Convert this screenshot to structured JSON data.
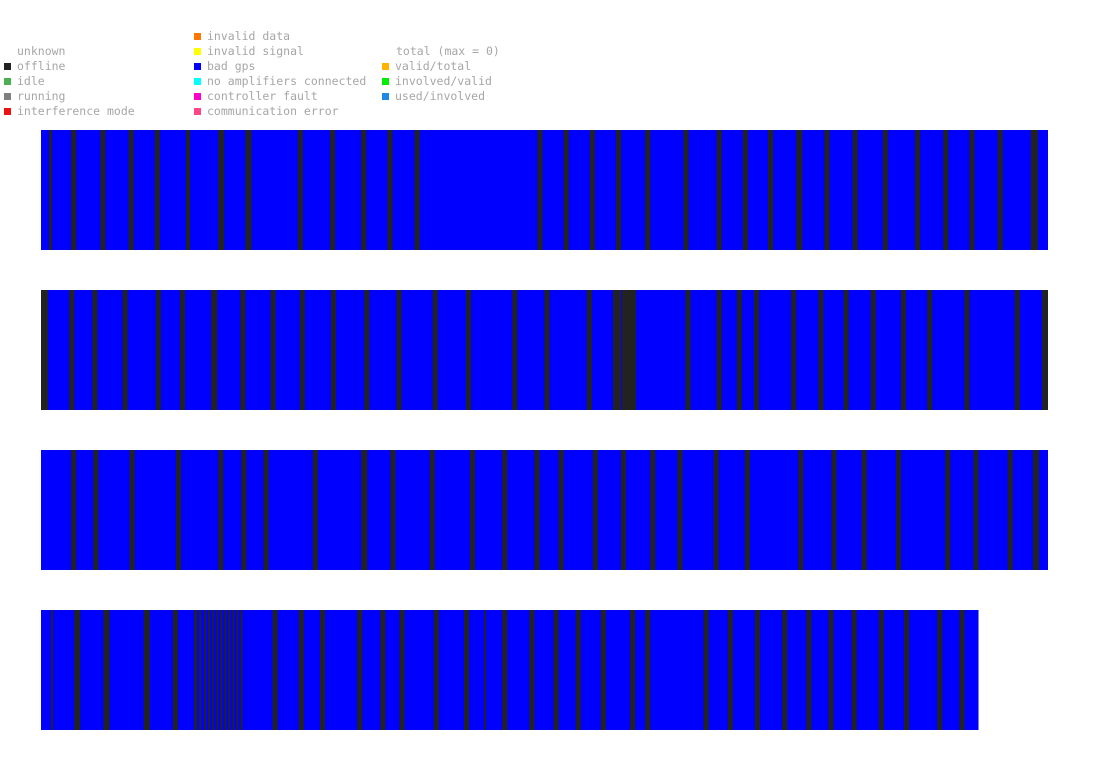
{
  "legend": {
    "status": [
      {
        "label": "unknown",
        "color": ""
      },
      {
        "label": "offline",
        "color": "#222222"
      },
      {
        "label": "idle",
        "color": "#4caf50"
      },
      {
        "label": "running",
        "color": "#808080"
      },
      {
        "label": "interference mode",
        "color": "#ee1111"
      }
    ],
    "faults": [
      {
        "label": "invalid data",
        "color": "#ff7700"
      },
      {
        "label": "invalid signal",
        "color": "#ffff00"
      },
      {
        "label": "bad gps",
        "color": "#0000ff"
      },
      {
        "label": "no amplifiers connected",
        "color": "#00ffff"
      },
      {
        "label": "controller fault",
        "color": "#ff00cc"
      },
      {
        "label": "communication error",
        "color": "#ff4488"
      }
    ],
    "totals_header": "total (max = 0)",
    "totals": [
      {
        "label": "valid/total",
        "color": "#ffb300"
      },
      {
        "label": "involved/valid",
        "color": "#00ee00"
      },
      {
        "label": "used/involved",
        "color": "#1e88e5"
      }
    ]
  },
  "chart_data": {
    "type": "heatmap",
    "base_state": "bad gps",
    "base_color": "#0000ff",
    "event_state": "offline",
    "event_color": "#222222",
    "span": [
      0,
      1000
    ],
    "strips": [
      {
        "length": 1000,
        "events": [
          [
            8,
            3
          ],
          [
            30,
            5
          ],
          [
            59,
            5
          ],
          [
            87,
            5
          ],
          [
            113,
            5
          ],
          [
            144,
            4
          ],
          [
            176,
            6
          ],
          [
            203,
            6
          ],
          [
            255,
            5
          ],
          [
            287,
            5
          ],
          [
            318,
            5
          ],
          [
            344,
            5
          ],
          [
            371,
            5
          ],
          [
            493,
            5
          ],
          [
            519,
            5
          ],
          [
            545,
            5
          ],
          [
            571,
            5
          ],
          [
            600,
            5
          ],
          [
            638,
            5
          ],
          [
            671,
            5
          ],
          [
            697,
            5
          ],
          [
            722,
            5
          ],
          [
            750,
            6
          ],
          [
            778,
            5
          ],
          [
            806,
            5
          ],
          [
            836,
            5
          ],
          [
            868,
            5
          ],
          [
            896,
            5
          ],
          [
            922,
            5
          ],
          [
            950,
            5
          ],
          [
            983,
            7
          ]
        ]
      },
      {
        "length": 1000,
        "events": [
          [
            0,
            7
          ],
          [
            28,
            5
          ],
          [
            51,
            5
          ],
          [
            81,
            5
          ],
          [
            114,
            5
          ],
          [
            138,
            5
          ],
          [
            169,
            6
          ],
          [
            198,
            5
          ],
          [
            228,
            5
          ],
          [
            257,
            5
          ],
          [
            288,
            5
          ],
          [
            321,
            5
          ],
          [
            353,
            5
          ],
          [
            389,
            5
          ],
          [
            422,
            5
          ],
          [
            468,
            5
          ],
          [
            500,
            5
          ],
          [
            542,
            5
          ],
          [
            568,
            5
          ],
          [
            573,
            3
          ],
          [
            577,
            14
          ],
          [
            640,
            5
          ],
          [
            671,
            5
          ],
          [
            691,
            5
          ],
          [
            708,
            5
          ],
          [
            745,
            5
          ],
          [
            772,
            5
          ],
          [
            797,
            5
          ],
          [
            824,
            5
          ],
          [
            854,
            5
          ],
          [
            880,
            5
          ],
          [
            917,
            5
          ],
          [
            967,
            5
          ],
          [
            994,
            6
          ]
        ]
      },
      {
        "length": 1000,
        "events": [
          [
            30,
            5
          ],
          [
            52,
            5
          ],
          [
            88,
            5
          ],
          [
            134,
            5
          ],
          [
            176,
            5
          ],
          [
            199,
            5
          ],
          [
            221,
            5
          ],
          [
            270,
            5
          ],
          [
            318,
            6
          ],
          [
            347,
            5
          ],
          [
            386,
            5
          ],
          [
            426,
            5
          ],
          [
            458,
            5
          ],
          [
            490,
            5
          ],
          [
            514,
            5
          ],
          [
            548,
            5
          ],
          [
            576,
            5
          ],
          [
            605,
            5
          ],
          [
            632,
            5
          ],
          [
            668,
            5
          ],
          [
            699,
            5
          ],
          [
            752,
            5
          ],
          [
            785,
            5
          ],
          [
            815,
            5
          ],
          [
            849,
            5
          ],
          [
            898,
            5
          ],
          [
            926,
            5
          ],
          [
            960,
            5
          ],
          [
            985,
            6
          ]
        ]
      },
      {
        "length": 931,
        "events": [
          [
            10,
            2
          ],
          [
            33,
            6
          ],
          [
            62,
            6
          ],
          [
            102,
            6
          ],
          [
            131,
            5
          ],
          [
            152,
            3
          ],
          [
            157,
            2
          ],
          [
            162,
            2
          ],
          [
            166,
            2
          ],
          [
            170,
            2
          ],
          [
            174,
            2
          ],
          [
            178,
            2
          ],
          [
            182,
            2
          ],
          [
            186,
            2
          ],
          [
            190,
            2
          ],
          [
            194,
            2
          ],
          [
            198,
            2
          ],
          [
            230,
            5
          ],
          [
            256,
            5
          ],
          [
            277,
            5
          ],
          [
            314,
            5
          ],
          [
            337,
            5
          ],
          [
            356,
            5
          ],
          [
            390,
            5
          ],
          [
            420,
            5
          ],
          [
            440,
            2
          ],
          [
            458,
            5
          ],
          [
            485,
            5
          ],
          [
            509,
            5
          ],
          [
            531,
            5
          ],
          [
            556,
            5
          ],
          [
            585,
            5
          ],
          [
            600,
            5
          ],
          [
            658,
            5
          ],
          [
            682,
            5
          ],
          [
            709,
            5
          ],
          [
            736,
            5
          ],
          [
            760,
            5
          ],
          [
            782,
            5
          ],
          [
            805,
            5
          ],
          [
            832,
            5
          ],
          [
            857,
            5
          ],
          [
            890,
            5
          ],
          [
            912,
            5
          ]
        ]
      }
    ]
  }
}
